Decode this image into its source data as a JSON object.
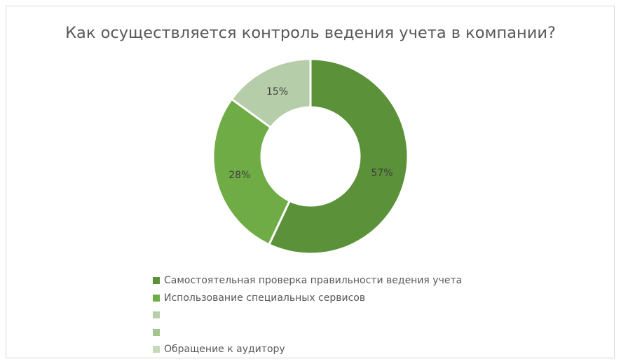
{
  "chart_data": {
    "type": "donut",
    "title": "Как осуществляется контроль ведения учета в компании?",
    "categories": [
      "Самостоятельная проверка правильности ведения учета",
      "Использование специальных сервисов",
      "",
      "",
      "Обращение к аудитору"
    ],
    "values": [
      57,
      28,
      0,
      0,
      15
    ],
    "data_labels": [
      "57%",
      "28%",
      "",
      "",
      "15%"
    ],
    "colors": [
      "#5B9138",
      "#6FAC46",
      "#B6CFA8",
      "#A2C590",
      "#B5CEA9"
    ],
    "legend_colors": [
      "#5B9138",
      "#6FAC46",
      "#B6CFA8",
      "#A2C590",
      "#C6DAB9"
    ],
    "legend_position": "bottom"
  }
}
